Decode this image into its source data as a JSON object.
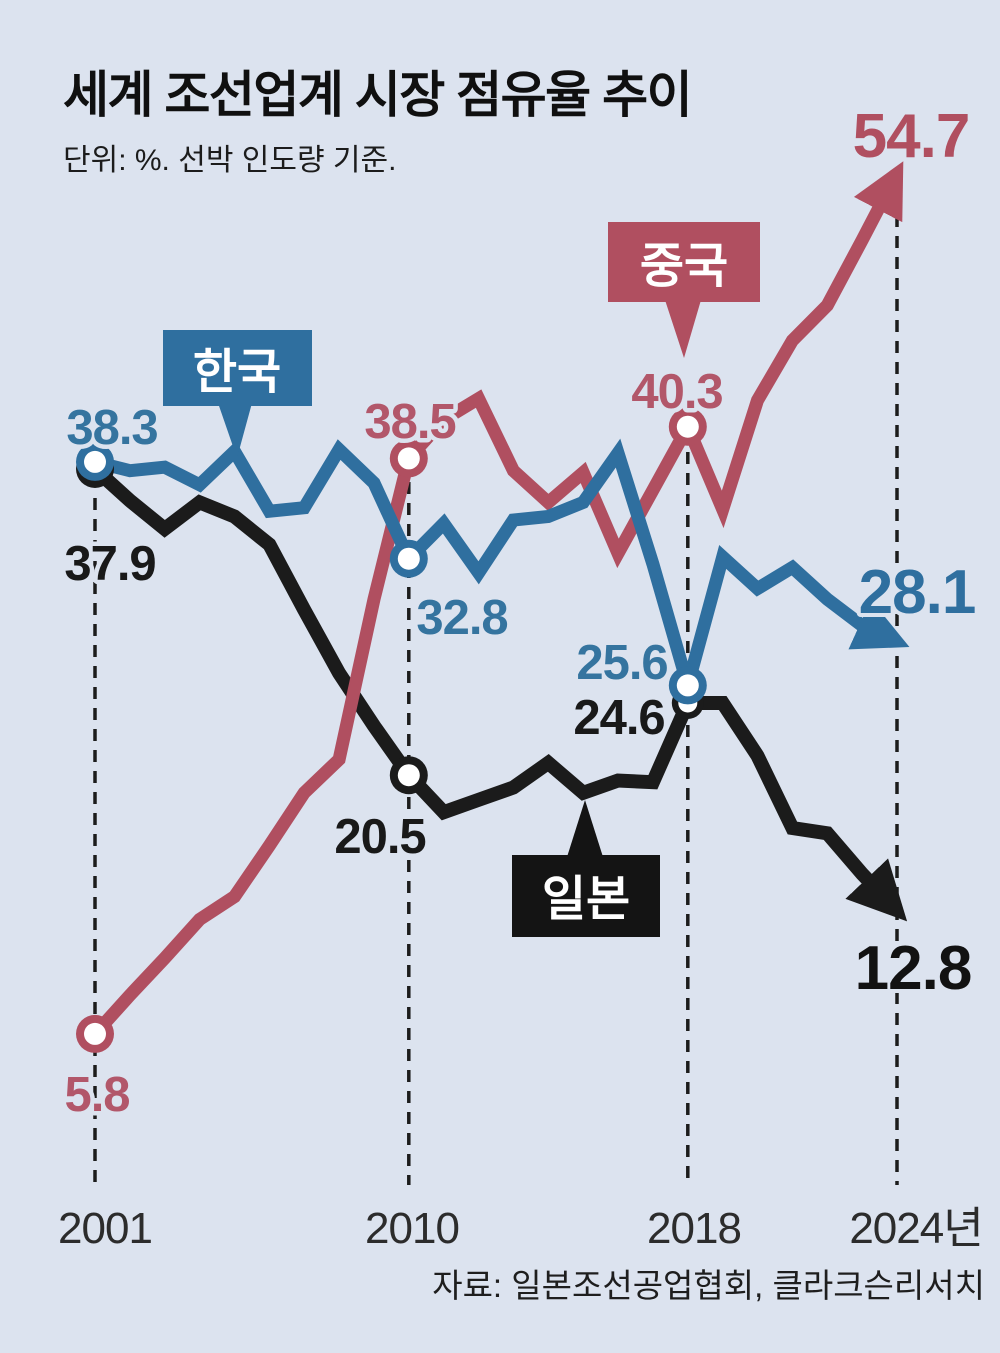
{
  "header": {
    "title": "세계 조선업계 시장 점유율 추이",
    "subtitle": "단위: %. 선박 인도량 기준."
  },
  "footer": {
    "source": "자료: 일본조선공업협회, 클라크슨리서치"
  },
  "colors": {
    "background": "#dce3ef",
    "korea": "#2f6f9f",
    "china": "#b04f60",
    "japan": "#1b1b1b"
  },
  "chart_data": {
    "type": "line",
    "unit": "%",
    "title": "세계 조선업계 시장 점유율 추이",
    "x": [
      2001,
      2002,
      2003,
      2004,
      2005,
      2006,
      2007,
      2008,
      2009,
      2010,
      2011,
      2012,
      2013,
      2014,
      2015,
      2016,
      2017,
      2018,
      2019,
      2020,
      2021,
      2022,
      2023,
      2024
    ],
    "x_tick_labels": [
      "2001",
      "2010",
      "2018",
      "2024년"
    ],
    "anchor_years": [
      2001,
      2010,
      2018,
      2024
    ],
    "ylim": [
      0,
      60
    ],
    "grid": "dashed vertical at anchor years",
    "legend_position": "inline callout boxes",
    "series": [
      {
        "name": "한국",
        "color": "#2f6f9f",
        "values": [
          38.3,
          37.8,
          38.0,
          37.0,
          38.9,
          35.5,
          35.7,
          39.0,
          37.1,
          32.8,
          34.8,
          32.0,
          35.0,
          35.2,
          36.0,
          38.8,
          32.5,
          25.6,
          32.9,
          31.1,
          32.3,
          30.5,
          29.0,
          28.1
        ]
      },
      {
        "name": "중국",
        "color": "#b04f60",
        "values": [
          5.8,
          8.0,
          10.1,
          12.3,
          13.6,
          16.5,
          19.5,
          21.4,
          30.5,
          38.5,
          40.7,
          41.9,
          37.8,
          36.0,
          37.7,
          33.1,
          36.7,
          40.3,
          35.6,
          41.8,
          45.2,
          47.2,
          50.9,
          54.7
        ]
      },
      {
        "name": "일본",
        "color": "#1b1b1b",
        "values": [
          37.9,
          36.1,
          34.5,
          36.0,
          35.2,
          33.6,
          29.9,
          26.3,
          23.3,
          20.5,
          18.4,
          19.1,
          19.8,
          21.2,
          19.5,
          20.2,
          20.1,
          24.6,
          24.6,
          21.6,
          17.5,
          17.2,
          14.9,
          12.8
        ]
      }
    ],
    "markers": [
      {
        "series": 2,
        "year": 2001,
        "kind": "dot"
      },
      {
        "series": 2,
        "year": 2010,
        "kind": "open"
      },
      {
        "series": 2,
        "year": 2018,
        "kind": "open-small"
      },
      {
        "series": 1,
        "year": 2001,
        "kind": "open"
      },
      {
        "series": 1,
        "year": 2010,
        "kind": "open"
      },
      {
        "series": 1,
        "year": 2018,
        "kind": "open"
      },
      {
        "series": 0,
        "year": 2001,
        "kind": "open"
      },
      {
        "series": 0,
        "year": 2010,
        "kind": "open"
      },
      {
        "series": 0,
        "year": 2018,
        "kind": "open"
      }
    ],
    "labels": {
      "korea_2001": "38.3",
      "korea_2010": "32.8",
      "korea_2018": "25.6",
      "korea_2024": "28.1",
      "china_2001": "5.8",
      "china_2010": "38.5",
      "china_2018": "40.3",
      "china_2024": "54.7",
      "japan_2001": "37.9",
      "japan_2010": "20.5",
      "japan_2018": "24.6",
      "japan_2024": "12.8"
    }
  }
}
